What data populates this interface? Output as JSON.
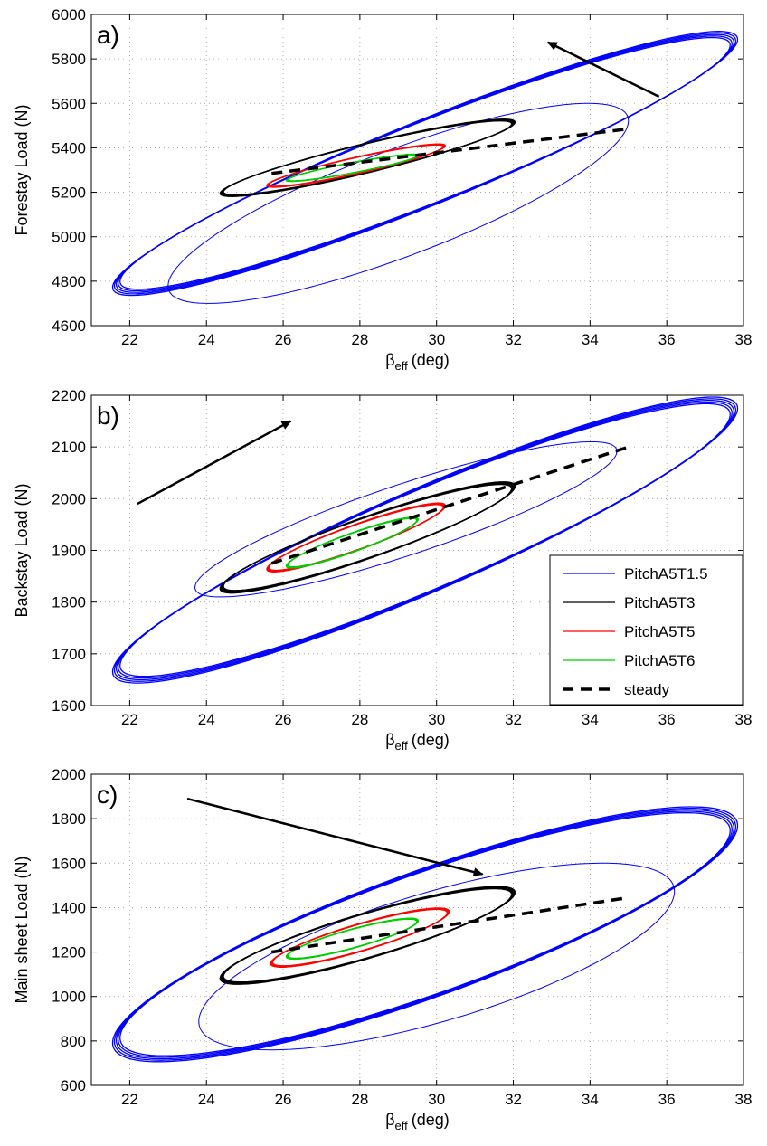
{
  "chart_data": [
    {
      "type": "line",
      "panel_label": "a)",
      "xlabel_main": "β",
      "xlabel_sub": "eff",
      "xlabel_unit": "(deg)",
      "ylabel": "Forestay Load (N)",
      "xlim": [
        21,
        38
      ],
      "ylim": [
        4600,
        6000
      ],
      "xticks": [
        "22",
        "24",
        "26",
        "28",
        "30",
        "32",
        "34",
        "36",
        "38"
      ],
      "yticks": [
        "4600",
        "4800",
        "5000",
        "5200",
        "5400",
        "5600",
        "5800",
        "6000"
      ],
      "grid": true,
      "arrow": {
        "from": [
          35.8,
          5630
        ],
        "to": [
          32.9,
          5875
        ]
      },
      "series": [
        {
          "name": "PitchA5T1.5",
          "color": "#0000ff",
          "loop": {
            "xc": 29.7,
            "yc": 5330,
            "rx": 8.05,
            "ry": 580,
            "phase": 0.35
          },
          "inner": {
            "xc": 29.0,
            "yc": 5150,
            "rx": 6.0,
            "ry": 450,
            "phase": 0.6
          }
        },
        {
          "name": "PitchA5T3",
          "color": "#000000",
          "loop": {
            "xc": 28.2,
            "yc": 5355,
            "rx": 3.8,
            "ry": 170,
            "phase": 0.4
          }
        },
        {
          "name": "PitchA5T5",
          "color": "#ff0000",
          "loop": {
            "xc": 27.9,
            "yc": 5320,
            "rx": 2.3,
            "ry": 95,
            "phase": 0.4
          }
        },
        {
          "name": "PitchA5T6",
          "color": "#00cc00",
          "loop": {
            "xc": 27.8,
            "yc": 5310,
            "rx": 1.7,
            "ry": 60,
            "phase": 0.4
          }
        },
        {
          "name": "steady",
          "color": "#000000",
          "x": [
            25.7,
            35.0
          ],
          "y": [
            5285,
            5485
          ]
        }
      ]
    },
    {
      "type": "line",
      "panel_label": "b)",
      "xlabel_main": "β",
      "xlabel_sub": "eff",
      "xlabel_unit": "(deg)",
      "ylabel": "Backstay Load (N)",
      "xlim": [
        21,
        38
      ],
      "ylim": [
        1600,
        2200
      ],
      "xticks": [
        "22",
        "24",
        "26",
        "28",
        "30",
        "32",
        "34",
        "36",
        "38"
      ],
      "yticks": [
        "1600",
        "1700",
        "1800",
        "1900",
        "2000",
        "2100",
        "2200"
      ],
      "grid": true,
      "arrow": {
        "from": [
          22.2,
          1990
        ],
        "to": [
          26.2,
          2150
        ]
      },
      "legend": {
        "position": "lower-right"
      },
      "series": [
        {
          "name": "PitchA5T1.5",
          "color": "#0000ff",
          "loop": {
            "xc": 29.7,
            "yc": 1920,
            "rx": 8.05,
            "ry": 270,
            "phase": -0.4
          },
          "inner": {
            "xc": 29.2,
            "yc": 1960,
            "rx": 5.5,
            "ry": 150,
            "phase": -0.5
          }
        },
        {
          "name": "PitchA5T3",
          "color": "#000000",
          "loop": {
            "xc": 28.2,
            "yc": 1925,
            "rx": 3.8,
            "ry": 105,
            "phase": -0.4
          }
        },
        {
          "name": "PitchA5T5",
          "color": "#ff0000",
          "loop": {
            "xc": 27.9,
            "yc": 1925,
            "rx": 2.3,
            "ry": 65,
            "phase": -0.4
          }
        },
        {
          "name": "PitchA5T6",
          "color": "#00cc00",
          "loop": {
            "xc": 27.8,
            "yc": 1915,
            "rx": 1.7,
            "ry": 48,
            "phase": -0.4
          }
        },
        {
          "name": "steady",
          "color": "#000000",
          "x": [
            25.7,
            35.0
          ],
          "y": [
            1875,
            2100
          ]
        }
      ]
    },
    {
      "type": "line",
      "panel_label": "c)",
      "xlabel_main": "β",
      "xlabel_sub": "eff",
      "xlabel_unit": "(deg)",
      "ylabel": "Main sheet Load (N)",
      "xlim": [
        21,
        38
      ],
      "ylim": [
        600,
        2000
      ],
      "xticks": [
        "22",
        "24",
        "26",
        "28",
        "30",
        "32",
        "34",
        "36",
        "38"
      ],
      "yticks": [
        "600",
        "800",
        "1000",
        "1200",
        "1400",
        "1600",
        "1800",
        "2000"
      ],
      "grid": true,
      "arrow": {
        "from": [
          23.5,
          1890
        ],
        "to": [
          31.2,
          1550
        ]
      },
      "series": [
        {
          "name": "PitchA5T1.5",
          "color": "#0000ff",
          "loop": {
            "xc": 29.7,
            "yc": 1280,
            "rx": 8.05,
            "ry": 560,
            "phase": 0.55
          },
          "inner": {
            "xc": 30.0,
            "yc": 1180,
            "rx": 6.2,
            "ry": 420,
            "phase": 0.8
          }
        },
        {
          "name": "PitchA5T3",
          "color": "#000000",
          "loop": {
            "xc": 28.2,
            "yc": 1275,
            "rx": 3.8,
            "ry": 215,
            "phase": 0.5
          }
        },
        {
          "name": "PitchA5T5",
          "color": "#ff0000",
          "loop": {
            "xc": 28.0,
            "yc": 1265,
            "rx": 2.3,
            "ry": 130,
            "phase": 0.5
          }
        },
        {
          "name": "PitchA5T6",
          "color": "#00cc00",
          "loop": {
            "xc": 27.8,
            "yc": 1260,
            "rx": 1.7,
            "ry": 90,
            "phase": 0.5
          }
        },
        {
          "name": "steady",
          "color": "#000000",
          "x": [
            25.7,
            35.0
          ],
          "y": [
            1200,
            1445
          ]
        }
      ]
    }
  ]
}
